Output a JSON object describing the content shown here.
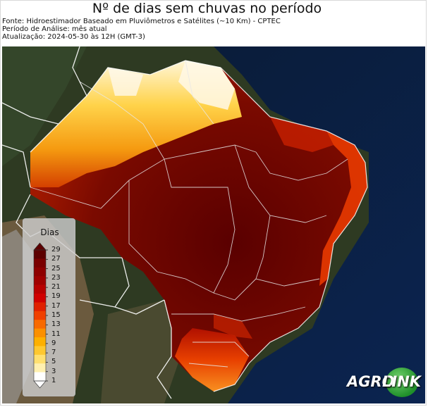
{
  "header": {
    "title": "Nº de dias sem chuvas no período",
    "source": "Fonte: Hidroestimador Baseado em Pluviômetros e Satélites (~10 Km) - CPTEC",
    "period": "Período de Análise: mês atual",
    "updated": "Atualização: 2024-05-30 às 12H (GMT-3)"
  },
  "legend": {
    "title": "Dias",
    "ticks": [
      "29",
      "27",
      "25",
      "23",
      "21",
      "19",
      "17",
      "15",
      "13",
      "11",
      "9",
      "7",
      "5",
      "3",
      "1"
    ],
    "colors": [
      "#5c0000",
      "#7a0000",
      "#8e0000",
      "#a00000",
      "#b80000",
      "#d00000",
      "#e02000",
      "#f04000",
      "#f86a00",
      "#fb9000",
      "#fdb000",
      "#fec830",
      "#ffe070",
      "#fff0b0",
      "#ffffff"
    ]
  },
  "logo": {
    "part1": "AGRO",
    "part2": "LINK"
  }
}
